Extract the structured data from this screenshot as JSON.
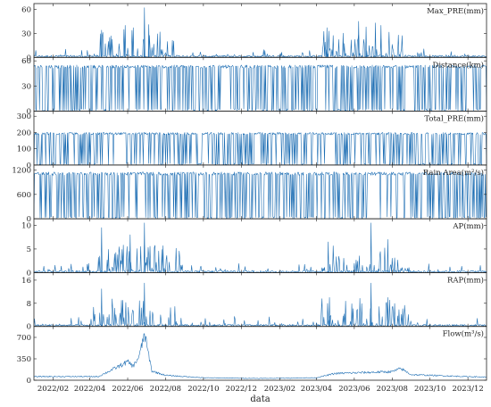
{
  "chart_data": {
    "type": "line",
    "xlabel": "data",
    "x_range": [
      "2022-01-01",
      "2023-12-31"
    ],
    "x_ticks": [
      "2022/02",
      "2022/04",
      "2022/06",
      "2022/08",
      "2022/10",
      "2022/12",
      "2023/02",
      "2023/04",
      "2023/06",
      "2023/08",
      "2023/10",
      "2023/12"
    ],
    "x_tick_dates": [
      "2022-02-01",
      "2022-04-01",
      "2022-06-01",
      "2022-08-01",
      "2022-10-01",
      "2022-12-01",
      "2023-02-01",
      "2023-04-01",
      "2023-06-01",
      "2023-08-01",
      "2023-10-01",
      "2023-12-01"
    ],
    "color": "#1f6fb4",
    "panels": [
      {
        "label": "Max_PRE(mm)",
        "yticks": [
          "0",
          "30",
          "60"
        ],
        "ylim": [
          0,
          65
        ],
        "kind": "spiky",
        "x": [
          "2022-04-20",
          "2022-05-28",
          "2022-06-10",
          "2022-06-28",
          "2022-07-05",
          "2023-04-18",
          "2023-06-08",
          "2023-06-20",
          "2023-07-05",
          "2023-07-14"
        ],
        "values": [
          34,
          40,
          37,
          62,
          41,
          37,
          45,
          38,
          43,
          40
        ]
      },
      {
        "label": "Distance(km)",
        "yticks": [
          "0",
          "30",
          "60"
        ],
        "ylim": [
          0,
          62
        ],
        "kind": "dense",
        "values": [
          55,
          55,
          55,
          55,
          55,
          55
        ]
      },
      {
        "label": "Total_PRE(mm)",
        "yticks": [
          "0",
          "100",
          "200",
          "300"
        ],
        "ylim": [
          0,
          320
        ],
        "kind": "dense",
        "values": [
          200,
          200,
          200,
          200,
          200,
          200
        ]
      },
      {
        "label": "Rain Area(m²/s)",
        "yticks": [
          "0",
          "600",
          "1200"
        ],
        "ylim": [
          0,
          1280
        ],
        "kind": "dense",
        "values": [
          1150,
          1150,
          1150,
          1150,
          1150,
          1150
        ]
      },
      {
        "label": "AP(mm)",
        "yticks": [
          "0",
          "5",
          "10"
        ],
        "ylim": [
          0,
          11
        ],
        "kind": "spiky",
        "x": [
          "2022-04-20",
          "2022-06-05",
          "2022-06-28",
          "2023-04-20",
          "2023-06-28",
          "2023-07-25"
        ],
        "values": [
          9.5,
          8.0,
          10.5,
          6.5,
          10.5,
          7.0
        ]
      },
      {
        "label": "RAP(mm)",
        "yticks": [
          "0",
          "8",
          "16"
        ],
        "ylim": [
          0,
          18
        ],
        "kind": "spiky",
        "x": [
          "2022-04-20",
          "2022-06-28",
          "2023-04-22",
          "2023-06-28",
          "2023-07-25"
        ],
        "values": [
          13,
          15,
          10,
          15,
          10
        ]
      },
      {
        "label": "Flow(m³/s)",
        "yticks": [
          "0",
          "350",
          "700"
        ],
        "ylim": [
          0,
          850
        ],
        "kind": "flow",
        "x": [
          "2022-01-01",
          "2022-04-15",
          "2022-06-01",
          "2022-06-10",
          "2022-06-20",
          "2022-06-28",
          "2022-07-10",
          "2022-08-01",
          "2022-10-01",
          "2023-01-01",
          "2023-04-01",
          "2023-05-01",
          "2023-06-01",
          "2023-08-01",
          "2023-08-15",
          "2023-09-01",
          "2023-12-31"
        ],
        "values": [
          60,
          60,
          300,
          230,
          400,
          760,
          150,
          80,
          40,
          30,
          40,
          110,
          120,
          140,
          190,
          90,
          50
        ]
      }
    ]
  }
}
